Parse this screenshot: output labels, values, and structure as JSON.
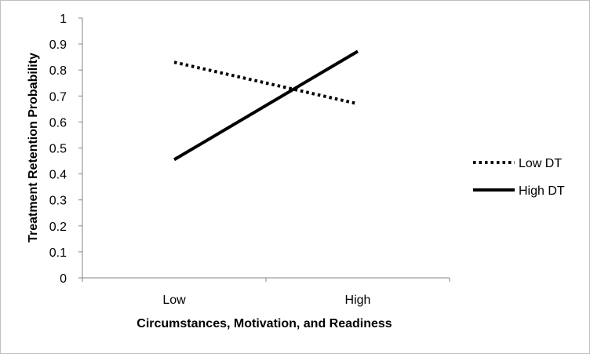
{
  "chart_data": {
    "type": "line",
    "categories": [
      "Low",
      "High"
    ],
    "series": [
      {
        "name": "Low DT",
        "values": [
          0.83,
          0.67
        ],
        "line_style": "dotted",
        "color": "#000000"
      },
      {
        "name": "High DT",
        "values": [
          0.455,
          0.872
        ],
        "line_style": "solid",
        "color": "#000000"
      }
    ],
    "y_ticks": [
      "0",
      "0.1",
      "0.2",
      "0.3",
      "0.4",
      "0.5",
      "0.6",
      "0.7",
      "0.8",
      "0.9",
      "1"
    ],
    "ylim": [
      0,
      1
    ],
    "xlabel": "Circumstances, Motivation, and Readiness",
    "ylabel": "Treatment Retention Probability",
    "title": "",
    "grid": false,
    "legend_position": "right"
  }
}
